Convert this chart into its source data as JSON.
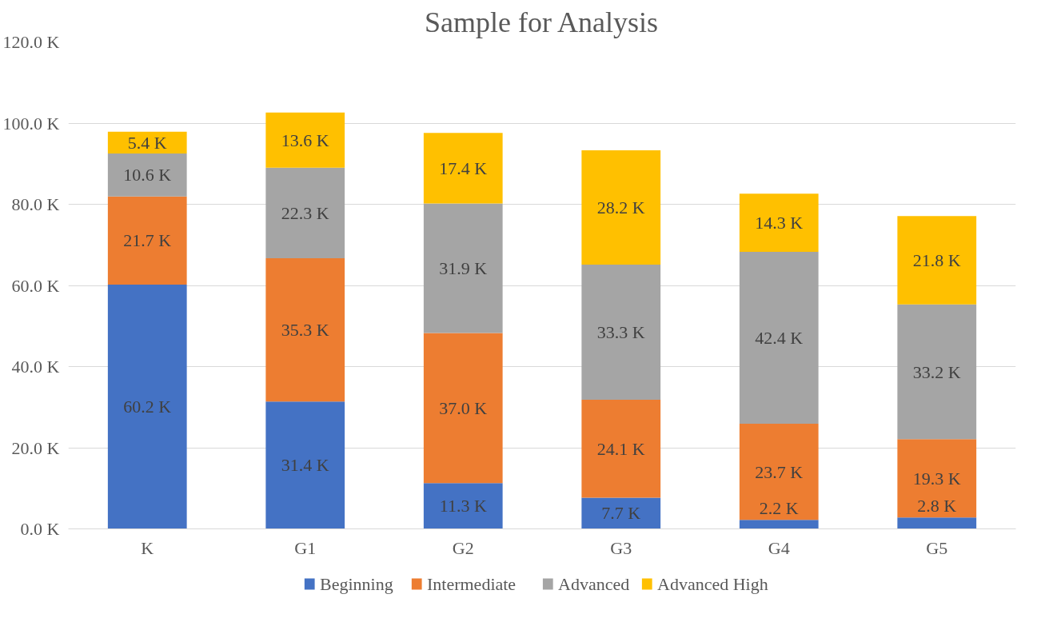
{
  "chart_data": {
    "type": "bar",
    "title": "Sample for Analysis",
    "stacked": true,
    "categories": [
      "K",
      "G1",
      "G2",
      "G3",
      "G4",
      "G5"
    ],
    "series": [
      {
        "name": "Beginning",
        "color": "#4472c4",
        "values": [
          60.2,
          31.4,
          11.3,
          7.7,
          2.2,
          2.8
        ],
        "value_labels": [
          "60.2 K",
          "31.4 K",
          "11.3 K",
          "7.7 K",
          "2.2 K",
          "2.8 K"
        ]
      },
      {
        "name": "Intermediate",
        "color": "#ed7d31",
        "values": [
          21.7,
          35.3,
          37.0,
          24.1,
          23.7,
          19.3
        ],
        "value_labels": [
          "21.7 K",
          "35.3 K",
          "37.0 K",
          "24.1 K",
          "23.7 K",
          "19.3 K"
        ]
      },
      {
        "name": "Advanced",
        "color": "#a5a5a5",
        "values": [
          10.6,
          22.3,
          31.9,
          33.3,
          42.4,
          33.2
        ],
        "value_labels": [
          "10.6 K",
          "22.3 K",
          "31.9 K",
          "33.3 K",
          "42.4 K",
          "33.2 K"
        ]
      },
      {
        "name": "Advanced High",
        "color": "#ffc000",
        "values": [
          5.4,
          13.6,
          17.4,
          28.2,
          14.3,
          21.8
        ],
        "value_labels": [
          "5.4 K",
          "13.6 K",
          "17.4 K",
          "28.2 K",
          "14.3 K",
          "21.8 K"
        ]
      }
    ],
    "ylim": [
      0,
      120
    ],
    "yticks": [
      {
        "value": 0,
        "label": "0.0 K"
      },
      {
        "value": 20,
        "label": "20.0 K"
      },
      {
        "value": 40,
        "label": "40.0 K"
      },
      {
        "value": 60,
        "label": "60.0 K"
      },
      {
        "value": 80,
        "label": "80.0 K"
      },
      {
        "value": 100,
        "label": "100.0 K"
      },
      {
        "value": 120,
        "label": "120.0 K"
      }
    ],
    "grid": "y",
    "legend": "bottom"
  }
}
